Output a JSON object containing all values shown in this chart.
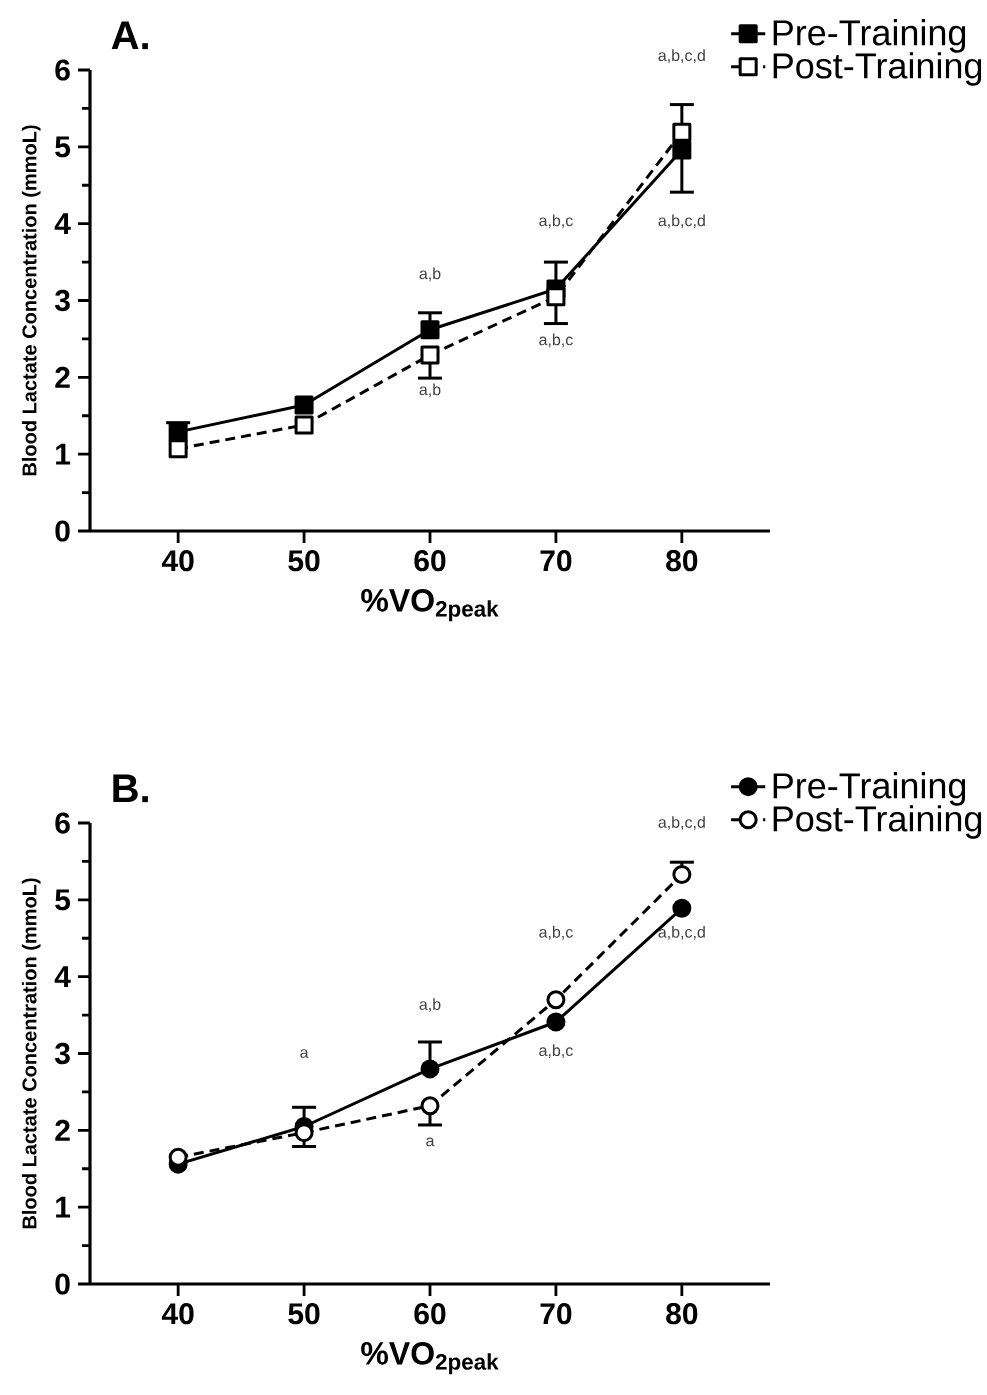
{
  "chart_data": [
    {
      "type": "line",
      "title": "A.",
      "xlabel": "%VO$_{2peak}$",
      "ylabel": "Blood Lactate Concentration (mmoL)",
      "x": [
        40,
        50,
        60,
        70,
        80
      ],
      "xlim": [
        33,
        87
      ],
      "xticks": [
        40,
        50,
        60,
        70,
        80
      ],
      "ylim": [
        0,
        6
      ],
      "yticks": [
        0,
        1,
        2,
        3,
        4,
        5,
        6
      ],
      "legend": "top right",
      "marker": "square",
      "grid": false,
      "series": [
        {
          "name": "Pre-Training",
          "color": "#000000",
          "line_style": "solid",
          "values": [
            1.29,
            1.64,
            2.62,
            3.15,
            4.96
          ],
          "errors": [
            [
              1.29,
              1.41
            ],
            null,
            [
              2.62,
              2.84
            ],
            [
              3.15,
              3.5
            ],
            [
              4.41,
              4.96
            ]
          ]
        },
        {
          "name": "Post-Training",
          "color": "#000000",
          "line_style": "dashed",
          "values": [
            1.07,
            1.38,
            2.29,
            3.05,
            5.19
          ],
          "errors": [
            null,
            null,
            [
              1.99,
              2.29
            ],
            [
              2.7,
              3.05
            ],
            [
              5.19,
              5.55
            ]
          ]
        }
      ],
      "annotations": [
        "a,b",
        "a,b",
        "a,b,c",
        "a,b,c",
        "a,b,c,d",
        "a,b,c,d"
      ]
    },
    {
      "type": "line",
      "title": "B.",
      "xlabel": "%VO$_{2peak}$",
      "ylabel": "Blood Lactate Concentration (mmoL)",
      "x": [
        40,
        50,
        60,
        70,
        80
      ],
      "xlim": [
        33,
        87
      ],
      "xticks": [
        40,
        50,
        60,
        70,
        80
      ],
      "ylim": [
        0,
        6
      ],
      "yticks": [
        0,
        1,
        2,
        3,
        4,
        5,
        6
      ],
      "legend": "top right",
      "grid": false,
      "series": [
        {
          "name": "Pre-Training",
          "color": "#000000",
          "line_style": "solid",
          "marker": "circle",
          "values": [
            1.56,
            2.05,
            2.8,
            3.41,
            4.89
          ],
          "errors": [
            null,
            [
              2.05,
              2.3
            ],
            [
              2.8,
              3.15
            ],
            null,
            null
          ]
        },
        {
          "name": "Post-Training",
          "color": "#000000",
          "line_style": "dashed",
          "marker": "circle",
          "values": [
            1.65,
            1.97,
            2.32,
            3.7,
            5.33
          ],
          "errors": [
            null,
            [
              1.79,
              1.97
            ],
            [
              2.07,
              2.32
            ],
            null,
            [
              5.33,
              5.49
            ]
          ]
        }
      ],
      "annotations": [
        "a",
        "a,b",
        "a",
        "a,b,c",
        "a,b,c",
        "a,b,c,d",
        "a,b,c,d"
      ]
    }
  ]
}
